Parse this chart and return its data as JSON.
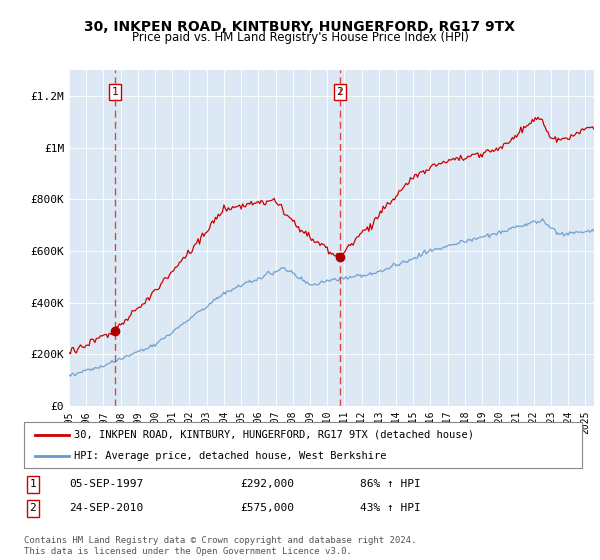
{
  "title": "30, INKPEN ROAD, KINTBURY, HUNGERFORD, RG17 9TX",
  "subtitle": "Price paid vs. HM Land Registry's House Price Index (HPI)",
  "background_color": "#ffffff",
  "plot_bg_color": "#dce9f5",
  "ylim": [
    0,
    1300000
  ],
  "yticks": [
    0,
    200000,
    400000,
    600000,
    800000,
    1000000,
    1200000
  ],
  "ytick_labels": [
    "£0",
    "£200K",
    "£400K",
    "£600K",
    "£800K",
    "£1M",
    "£1.2M"
  ],
  "xmin": 1995.0,
  "xmax": 2025.5,
  "sale1_x": 1997.67,
  "sale1_y": 292000,
  "sale1_label": "1",
  "sale1_date": "05-SEP-1997",
  "sale1_price": "£292,000",
  "sale1_hpi": "86% ↑ HPI",
  "sale2_x": 2010.73,
  "sale2_y": 575000,
  "sale2_label": "2",
  "sale2_date": "24-SEP-2010",
  "sale2_price": "£575,000",
  "sale2_hpi": "43% ↑ HPI",
  "red_line_color": "#cc0000",
  "blue_line_color": "#6699cc",
  "dashed_line_color": "#dd3333",
  "dot_color": "#aa0000",
  "legend_label_red": "30, INKPEN ROAD, KINTBURY, HUNGERFORD, RG17 9TX (detached house)",
  "legend_label_blue": "HPI: Average price, detached house, West Berkshire",
  "footer": "Contains HM Land Registry data © Crown copyright and database right 2024.\nThis data is licensed under the Open Government Licence v3.0.",
  "xticks": [
    1995,
    1996,
    1997,
    1998,
    1999,
    2000,
    2001,
    2002,
    2003,
    2004,
    2005,
    2006,
    2007,
    2008,
    2009,
    2010,
    2011,
    2012,
    2013,
    2014,
    2015,
    2016,
    2017,
    2018,
    2019,
    2020,
    2021,
    2022,
    2023,
    2024,
    2025
  ],
  "title_fontsize": 10.5,
  "subtitle_fontsize": 9
}
